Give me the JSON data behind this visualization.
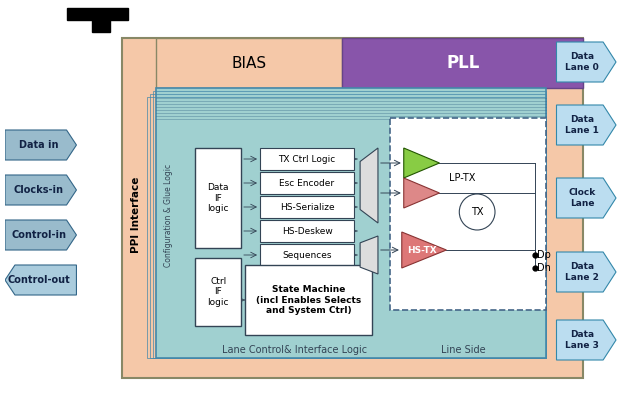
{
  "bg_color": "#FFFFFF",
  "outer_box_color": "#F5C8A8",
  "outer_box_edge": "#888866",
  "inner_teal_color": "#A0D0D0",
  "inner_teal_edge": "#4488AA",
  "bias_color": "#F5C8A8",
  "bias_edge": "#888866",
  "pll_color": "#8855AA",
  "pll_edge": "#664488",
  "lane_arrow_color": "#BBDDF0",
  "lane_arrow_edge": "#3388AA",
  "left_arrow_color": "#99BBCC",
  "left_arrow_edge": "#336688",
  "white_box_edge": "#334455",
  "dashed_edge": "#446688",
  "lptx_green": "#88CC44",
  "lptx_pink": "#DD8888",
  "hstx_pink": "#DD7777",
  "tx_circle_color": "#FFFFFF",
  "line_color": "#334455",
  "bus_line_color": "#336688",
  "mux_color": "#DDDDDD",
  "ppi_label": "PPI Interface",
  "cfg_label": "Configuration & Glue Logic",
  "bias_label": "BIAS",
  "pll_label": "PLL",
  "lane_ctrl_label": "Lane Control& Interface Logic",
  "line_side_label": "Line Side",
  "lptx_label": "LP-TX",
  "hstx_label": "HS-TX",
  "tx_label": "TX",
  "dp_label": "Dp",
  "dn_label": "Dn",
  "func_boxes": [
    "TX Ctrl Logic",
    "Esc Encoder",
    "HS-Serialize",
    "HS-Deskew",
    "Sequences"
  ],
  "state_machine_label": "State Machine\n(incl Enables Selects\nand System Ctrl)",
  "data_if_label": "Data\nIF\nlogic",
  "ctrl_if_label": "Ctrl\nIF\nlogic",
  "left_arrows": [
    {
      "text": "Data in",
      "right": true
    },
    {
      "text": "Clocks-in",
      "right": true
    },
    {
      "text": "Control-in",
      "right": true
    },
    {
      "text": "Control-out",
      "right": false
    }
  ],
  "right_lanes": [
    "Data\nLane 0",
    "Data\nLane 1",
    "Clock\nLane",
    "Data\nLane 2",
    "Data\nLane 3"
  ]
}
